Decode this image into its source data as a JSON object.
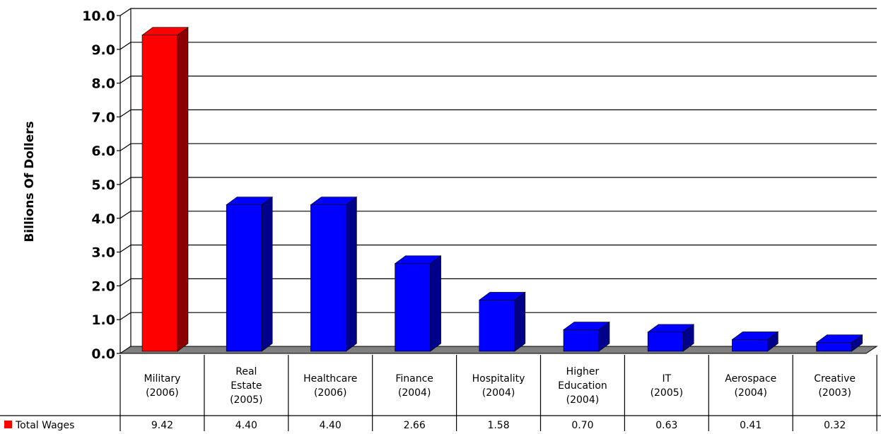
{
  "chart_data": {
    "type": "bar",
    "title": "",
    "xlabel": "",
    "ylabel": "Billions Of Dollers",
    "ylim": [
      0,
      10
    ],
    "yticks": [
      "0.0",
      "1.0",
      "2.0",
      "3.0",
      "4.0",
      "5.0",
      "6.0",
      "7.0",
      "8.0",
      "9.0",
      "10.0"
    ],
    "grid": true,
    "categories": [
      "Military (2006)",
      "Real Estate (2005)",
      "Healthcare (2006)",
      "Finance (2004)",
      "Hospitality (2004)",
      "Higher Education (2004)",
      "IT (2005)",
      "Aerospace (2004)",
      "Creative (2003)"
    ],
    "series": [
      {
        "name": "Total Wages",
        "values": [
          9.42,
          4.4,
          4.4,
          2.66,
          1.58,
          0.7,
          0.63,
          0.41,
          0.32
        ],
        "value_labels": [
          "9.42",
          "4.40",
          "4.40",
          "2.66",
          "1.58",
          "0.70",
          "0.63",
          "0.41",
          "0.32"
        ]
      }
    ],
    "colors": {
      "highlight": "#ff0000",
      "highlight_side": "#8b0000",
      "bar": "#0000ff",
      "bar_side": "#00008b",
      "floor": "#808080",
      "legend_swatch": "#ff0000"
    },
    "legend_placement": "data-table-left"
  }
}
